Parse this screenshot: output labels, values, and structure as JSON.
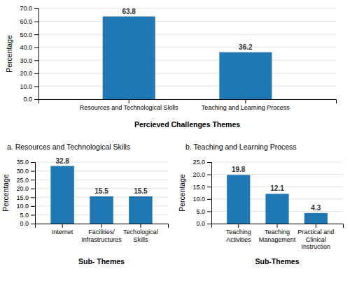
{
  "chart_data": [
    {
      "type": "bar",
      "categories": [
        "Resources and Technological Skills",
        "Teaching and Learning Process"
      ],
      "values": [
        63.8,
        36.2
      ],
      "x_label": "Percieved Challenges Themes",
      "y_label": "Percentage",
      "ylim": [
        0,
        70
      ],
      "yticks": [
        {
          "value": 0,
          "label": "0.0"
        },
        {
          "value": 10,
          "label": "10.0"
        },
        {
          "value": 20,
          "label": "20.0"
        },
        {
          "value": 30,
          "label": "30.0"
        },
        {
          "value": 40,
          "label": "40.0"
        },
        {
          "value": 50,
          "label": "50.0"
        },
        {
          "value": 60,
          "label": "60.0"
        },
        {
          "value": 70,
          "label": "70.0"
        }
      ],
      "grid": true,
      "data_labels": true
    },
    {
      "type": "bar",
      "title": "a. Resources and Technological Skills",
      "categories": [
        "Internet",
        "Facilities/\nInfrastructures",
        "Techological\nSkills"
      ],
      "values": [
        32.8,
        15.5,
        15.5
      ],
      "x_label": "Sub- Themes",
      "y_label": "Percentage",
      "ylim": [
        0,
        35
      ],
      "yticks": [
        {
          "value": 0,
          "label": "0.0"
        },
        {
          "value": 5,
          "label": "5.0"
        },
        {
          "value": 10,
          "label": "10.0"
        },
        {
          "value": 15,
          "label": "15.0"
        },
        {
          "value": 20,
          "label": "20.0"
        },
        {
          "value": 25,
          "label": "25.0"
        },
        {
          "value": 30,
          "label": "30.0"
        },
        {
          "value": 35,
          "label": "35.0"
        }
      ],
      "grid": true,
      "data_labels": true
    },
    {
      "type": "bar",
      "title": "b. Teaching and Learning Process",
      "categories": [
        "Teaching\nActivities",
        "Teaching\nManagement",
        "Practical and\nClinical\nInstruction"
      ],
      "values": [
        19.8,
        12.1,
        4.3
      ],
      "x_label": "Sub-Themes",
      "y_label": "Percentage",
      "ylim": [
        0,
        25
      ],
      "yticks": [
        {
          "value": 0,
          "label": "0.0"
        },
        {
          "value": 5,
          "label": "5.0"
        },
        {
          "value": 10,
          "label": "10.0"
        },
        {
          "value": 15,
          "label": "15.0"
        },
        {
          "value": 20,
          "label": "20.0"
        },
        {
          "value": 25,
          "label": "25.0"
        }
      ],
      "grid": true,
      "data_labels": true
    }
  ]
}
